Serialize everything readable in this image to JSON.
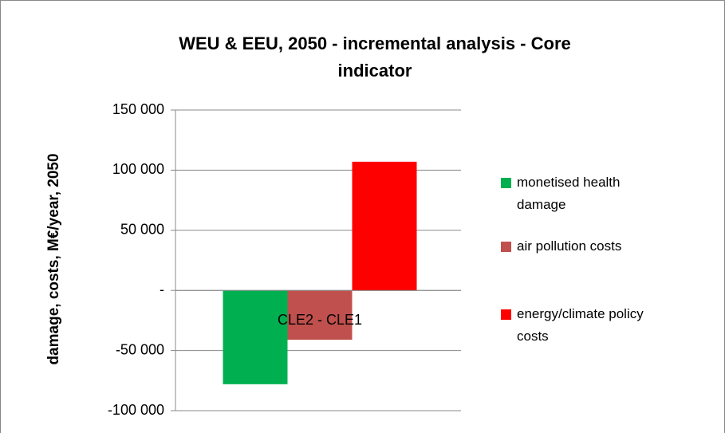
{
  "chart_data": {
    "type": "bar",
    "title": "WEU & EEU, 2050 - incremental analysis - Core indicator",
    "y_label": "damage, costs, M€/year, 2050",
    "categories": [
      "CLE2 - CLE1"
    ],
    "series": [
      {
        "name": "monetised health damage",
        "color": "#00b050",
        "values": [
          -78000
        ]
      },
      {
        "name": "air pollution costs",
        "color": "#c0504d",
        "values": [
          -41000
        ]
      },
      {
        "name": "energy/climate policy costs",
        "color": "#ff0000",
        "values": [
          107000
        ]
      }
    ],
    "ylim": [
      -100000,
      150000
    ],
    "yticks": [
      {
        "value": -100000,
        "label": "-100 000"
      },
      {
        "value": -50000,
        "label": "-50 000"
      },
      {
        "value": 0,
        "label": "-"
      },
      {
        "value": 50000,
        "label": "50 000"
      },
      {
        "value": 100000,
        "label": "100 000"
      },
      {
        "value": 150000,
        "label": "150 000"
      }
    ],
    "grid": true,
    "legend": "right"
  }
}
